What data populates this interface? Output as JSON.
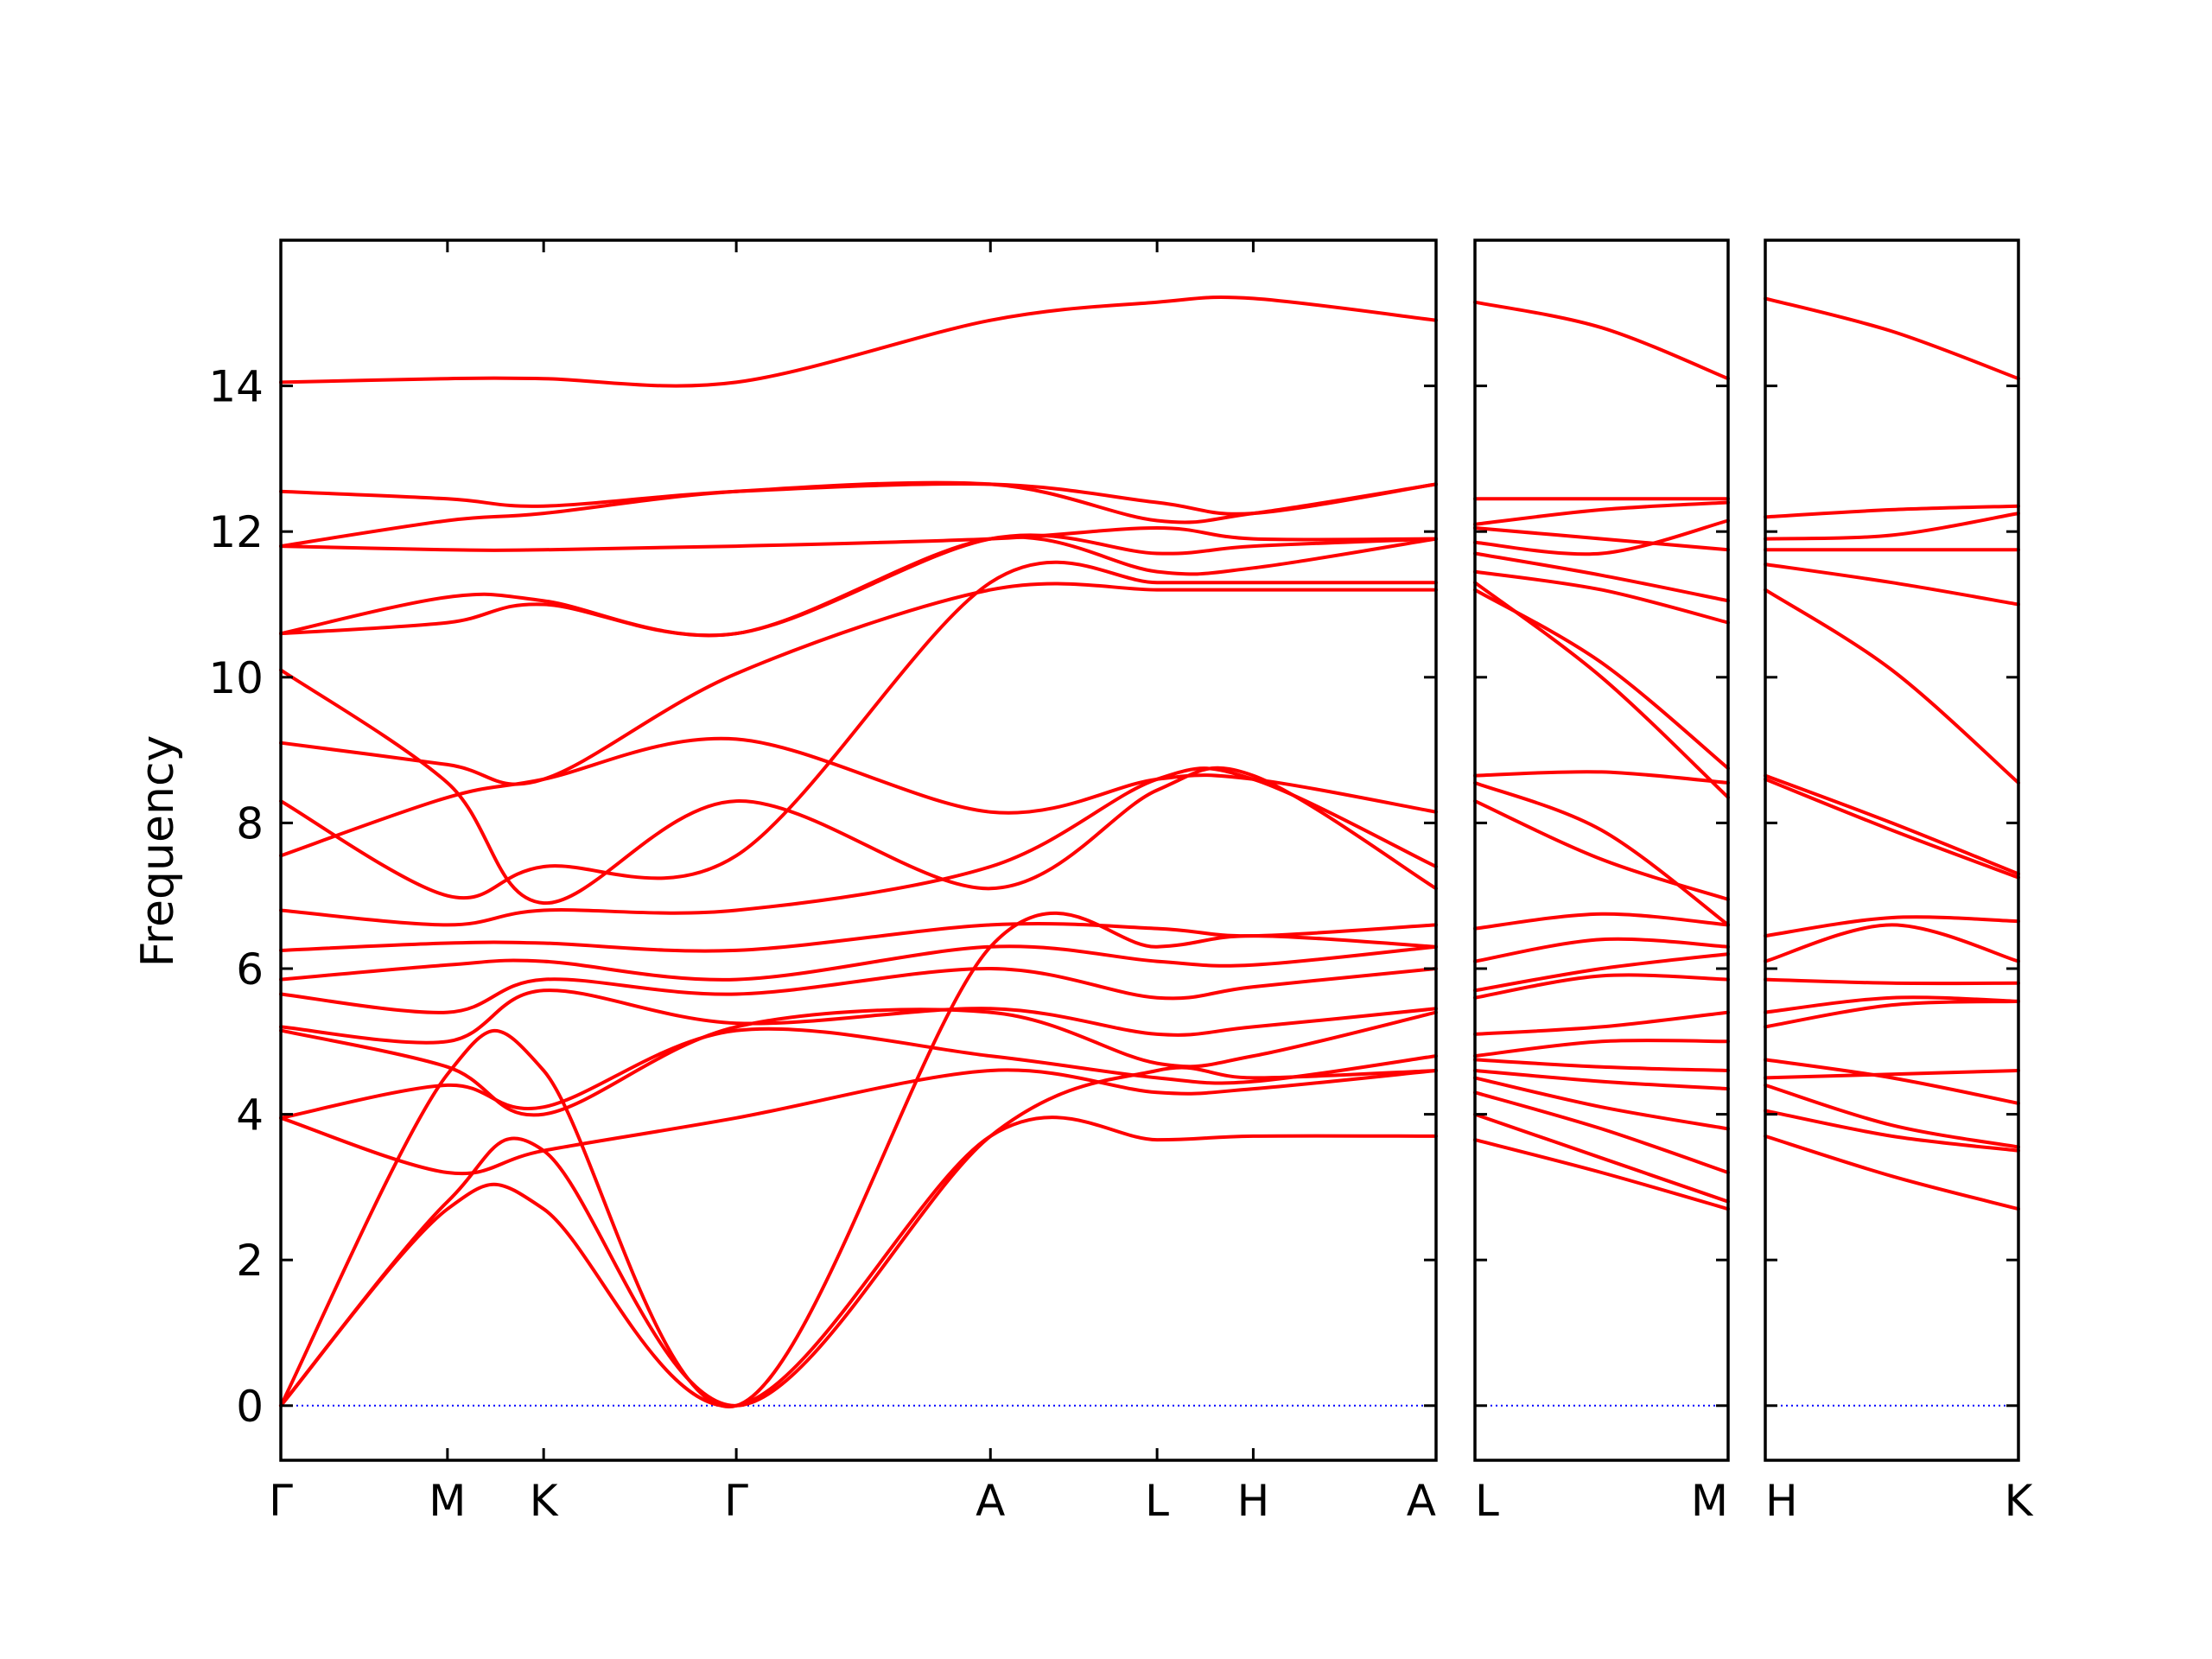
{
  "chart_data": {
    "type": "line",
    "ylabel": "Frequency",
    "xlabel": "",
    "ylim": [
      -0.75,
      16
    ],
    "yticks": [
      0,
      2,
      4,
      6,
      8,
      10,
      12,
      14
    ],
    "grid": false,
    "colors": {
      "band": "#ff0000",
      "zero_line": "#0000ff",
      "frame": "#000000"
    },
    "panels": [
      {
        "path_labels": [
          "Γ",
          "M",
          "K",
          "Γ",
          "A",
          "L",
          "H",
          "A"
        ],
        "path_positions": [
          0,
          0.577,
          0.91,
          1.577,
          2.457,
          3.034,
          3.367,
          4.0
        ],
        "series": [
          {
            "x": [
              0,
              0.577,
              0.91,
              1.577,
              2.457,
              3.034,
              3.367,
              4.0
            ],
            "y": [
              0,
              2.7,
              2.7,
              0,
              3.7,
              3.65,
              3.7,
              3.7
            ]
          },
          {
            "x": [
              0,
              0.577,
              0.91,
              1.577,
              2.457,
              3.034,
              3.367,
              4.0
            ],
            "y": [
              0,
              2.8,
              3.5,
              0,
              3.7,
              4.6,
              4.5,
              4.6
            ]
          },
          {
            "x": [
              0,
              0.577,
              0.91,
              1.577,
              2.457,
              3.034,
              3.367,
              4.0
            ],
            "y": [
              0,
              4.55,
              4.6,
              0,
              6.3,
              6.3,
              6.45,
              6.3
            ]
          },
          {
            "x": [
              0,
              0.577,
              0.91,
              1.577,
              2.457,
              3.034,
              3.367,
              4.0
            ],
            "y": [
              3.95,
              3.2,
              3.5,
              3.95,
              4.6,
              4.3,
              4.35,
              4.6
            ]
          },
          {
            "x": [
              0,
              0.577,
              0.91,
              1.577,
              2.457,
              3.034,
              3.367,
              4.0
            ],
            "y": [
              3.95,
              4.4,
              4.1,
              5.15,
              4.8,
              4.5,
              4.45,
              4.8
            ]
          },
          {
            "x": [
              0,
              0.577,
              0.91,
              1.577,
              2.457,
              3.034,
              3.367,
              4.0
            ],
            "y": [
              5.15,
              4.65,
              4.0,
              5.2,
              5.4,
              4.7,
              4.8,
              5.4
            ]
          },
          {
            "x": [
              0,
              0.577,
              0.91,
              1.577,
              2.457,
              3.034,
              3.367,
              4.0
            ],
            "y": [
              5.2,
              5.0,
              5.7,
              5.25,
              5.45,
              5.1,
              5.2,
              5.45
            ]
          },
          {
            "x": [
              0,
              0.577,
              0.91,
              1.577,
              2.457,
              3.034,
              3.367,
              4.0
            ],
            "y": [
              5.65,
              5.4,
              5.85,
              5.65,
              6.0,
              5.6,
              5.75,
              6.0
            ]
          },
          {
            "x": [
              0,
              0.577,
              0.91,
              1.577,
              2.457,
              3.034,
              3.367,
              4.0
            ],
            "y": [
              5.85,
              6.05,
              6.1,
              5.85,
              6.3,
              6.1,
              6.05,
              6.3
            ]
          },
          {
            "x": [
              0,
              0.577,
              0.91,
              1.577,
              2.457,
              3.034,
              3.367,
              4.0
            ],
            "y": [
              6.25,
              6.35,
              6.35,
              6.25,
              6.6,
              6.55,
              6.45,
              6.6
            ]
          },
          {
            "x": [
              0,
              0.577,
              0.91,
              1.577,
              2.457,
              3.034,
              3.367,
              4.0
            ],
            "y": [
              6.8,
              6.6,
              6.8,
              6.8,
              7.4,
              8.6,
              8.6,
              7.4
            ]
          },
          {
            "x": [
              0,
              0.577,
              0.91,
              1.577,
              2.457,
              3.034,
              3.367,
              4.0
            ],
            "y": [
              7.55,
              8.35,
              8.6,
              9.15,
              8.15,
              8.6,
              8.6,
              8.15
            ]
          },
          {
            "x": [
              0,
              0.577,
              0.91,
              1.577,
              2.457,
              3.034,
              3.367,
              4.0
            ],
            "y": [
              8.3,
              7.0,
              7.4,
              7.55,
              11.3,
              11.3,
              11.3,
              11.3
            ]
          },
          {
            "x": [
              0,
              0.577,
              0.91,
              1.577,
              2.457,
              3.034,
              3.367,
              4.0
            ],
            "y": [
              9.1,
              8.8,
              8.6,
              10.05,
              11.2,
              11.2,
              11.2,
              11.2
            ]
          },
          {
            "x": [
              0,
              0.577,
              0.91,
              1.577,
              2.457,
              3.034,
              3.367,
              4.0
            ],
            "y": [
              10.1,
              8.55,
              6.9,
              8.3,
              7.1,
              8.45,
              8.65,
              7.1
            ]
          },
          {
            "x": [
              0,
              0.577,
              0.91,
              1.577,
              2.457,
              3.034,
              3.367,
              4.0
            ],
            "y": [
              10.6,
              10.75,
              11.0,
              10.6,
              11.9,
              11.45,
              11.5,
              11.9
            ]
          },
          {
            "x": [
              0,
              0.577,
              0.91,
              1.577,
              2.457,
              3.034,
              3.367,
              4.0
            ],
            "y": [
              10.6,
              11.1,
              11.05,
              10.6,
              11.9,
              11.7,
              11.8,
              11.9
            ]
          },
          {
            "x": [
              0,
              0.577,
              0.91,
              1.577,
              2.457,
              3.034,
              3.367,
              4.0
            ],
            "y": [
              11.8,
              11.75,
              11.75,
              11.8,
              11.9,
              12.05,
              11.9,
              11.9
            ]
          },
          {
            "x": [
              0,
              0.577,
              0.91,
              1.577,
              2.457,
              3.034,
              3.367,
              4.0
            ],
            "y": [
              11.8,
              12.15,
              12.25,
              12.55,
              12.65,
              12.15,
              12.25,
              12.65
            ]
          },
          {
            "x": [
              0,
              0.577,
              0.91,
              1.577,
              2.457,
              3.034,
              3.367,
              4.0
            ],
            "y": [
              12.55,
              12.45,
              12.35,
              12.55,
              12.65,
              12.4,
              12.25,
              12.65
            ]
          },
          {
            "x": [
              0,
              0.577,
              0.91,
              1.577,
              2.457,
              3.034,
              3.367,
              4.0
            ],
            "y": [
              14.05,
              14.1,
              14.1,
              14.05,
              14.9,
              15.15,
              15.2,
              14.9
            ]
          }
        ]
      },
      {
        "path_labels": [
          "L",
          "M"
        ],
        "path_positions": [
          0,
          1
        ],
        "series": [
          {
            "x": [
              0,
              0.5,
              1
            ],
            "y": [
              3.65,
              3.2,
              2.7
            ]
          },
          {
            "x": [
              0,
              0.5,
              1
            ],
            "y": [
              4.0,
              3.4,
              2.8
            ]
          },
          {
            "x": [
              0,
              0.5,
              1
            ],
            "y": [
              4.3,
              3.8,
              3.2
            ]
          },
          {
            "x": [
              0,
              0.5,
              1
            ],
            "y": [
              4.5,
              4.1,
              3.8
            ]
          },
          {
            "x": [
              0,
              0.5,
              1
            ],
            "y": [
              4.6,
              4.45,
              4.35
            ]
          },
          {
            "x": [
              0,
              0.5,
              1
            ],
            "y": [
              4.75,
              4.65,
              4.6
            ]
          },
          {
            "x": [
              0,
              0.5,
              1
            ],
            "y": [
              4.8,
              5.0,
              5.0
            ]
          },
          {
            "x": [
              0,
              0.5,
              1
            ],
            "y": [
              5.1,
              5.2,
              5.4
            ]
          },
          {
            "x": [
              0,
              0.5,
              1
            ],
            "y": [
              5.6,
              5.9,
              5.85
            ]
          },
          {
            "x": [
              0,
              0.5,
              1
            ],
            "y": [
              5.7,
              6.0,
              6.2
            ]
          },
          {
            "x": [
              0,
              0.5,
              1
            ],
            "y": [
              6.1,
              6.4,
              6.3
            ]
          },
          {
            "x": [
              0,
              0.5,
              1
            ],
            "y": [
              6.55,
              6.75,
              6.6
            ]
          },
          {
            "x": [
              0,
              0.5,
              1
            ],
            "y": [
              8.3,
              7.5,
              6.95
            ]
          },
          {
            "x": [
              0,
              0.5,
              1
            ],
            "y": [
              8.55,
              7.9,
              6.6
            ]
          },
          {
            "x": [
              0,
              0.5,
              1
            ],
            "y": [
              8.65,
              8.7,
              8.55
            ]
          },
          {
            "x": [
              0,
              0.5,
              1
            ],
            "y": [
              11.2,
              10.2,
              8.75
            ]
          },
          {
            "x": [
              0,
              0.5,
              1
            ],
            "y": [
              11.3,
              10.0,
              8.35
            ]
          },
          {
            "x": [
              0,
              0.5,
              1
            ],
            "y": [
              11.45,
              11.2,
              10.75
            ]
          },
          {
            "x": [
              0,
              0.5,
              1
            ],
            "y": [
              11.7,
              11.4,
              11.05
            ]
          },
          {
            "x": [
              0,
              0.5,
              1
            ],
            "y": [
              11.85,
              11.7,
              12.15
            ]
          },
          {
            "x": [
              0,
              0.5,
              1
            ],
            "y": [
              12.05,
              11.9,
              11.75
            ]
          },
          {
            "x": [
              0,
              0.5,
              1
            ],
            "y": [
              12.1,
              12.3,
              12.4
            ]
          },
          {
            "x": [
              0,
              0.5,
              1
            ],
            "y": [
              12.45,
              12.45,
              12.45
            ]
          },
          {
            "x": [
              0,
              0.5,
              1
            ],
            "y": [
              15.15,
              14.8,
              14.1
            ]
          }
        ]
      },
      {
        "path_labels": [
          "H",
          "K"
        ],
        "path_positions": [
          0,
          1
        ],
        "series": [
          {
            "x": [
              0,
              0.5,
              1
            ],
            "y": [
              3.7,
              3.15,
              2.7
            ]
          },
          {
            "x": [
              0,
              0.5,
              1
            ],
            "y": [
              4.05,
              3.7,
              3.5
            ]
          },
          {
            "x": [
              0,
              0.5,
              1
            ],
            "y": [
              4.4,
              3.85,
              3.55
            ]
          },
          {
            "x": [
              0,
              0.5,
              1
            ],
            "y": [
              4.5,
              4.55,
              4.6
            ]
          },
          {
            "x": [
              0,
              0.5,
              1
            ],
            "y": [
              4.75,
              4.5,
              4.15
            ]
          },
          {
            "x": [
              0,
              0.5,
              1
            ],
            "y": [
              5.2,
              5.5,
              5.55
            ]
          },
          {
            "x": [
              0,
              0.5,
              1
            ],
            "y": [
              5.4,
              5.6,
              5.55
            ]
          },
          {
            "x": [
              0,
              0.5,
              1
            ],
            "y": [
              5.85,
              5.8,
              5.8
            ]
          },
          {
            "x": [
              0,
              0.5,
              1
            ],
            "y": [
              6.1,
              6.6,
              6.1
            ]
          },
          {
            "x": [
              0,
              0.5,
              1
            ],
            "y": [
              6.45,
              6.7,
              6.65
            ]
          },
          {
            "x": [
              0,
              0.5,
              1
            ],
            "y": [
              8.6,
              7.9,
              7.25
            ]
          },
          {
            "x": [
              0,
              0.5,
              1
            ],
            "y": [
              8.65,
              8.0,
              7.3
            ]
          },
          {
            "x": [
              0,
              0.5,
              1
            ],
            "y": [
              11.2,
              10.1,
              8.55
            ]
          },
          {
            "x": [
              0,
              0.5,
              1
            ],
            "y": [
              11.55,
              11.3,
              11.0
            ]
          },
          {
            "x": [
              0,
              0.5,
              1
            ],
            "y": [
              11.75,
              11.75,
              11.75
            ]
          },
          {
            "x": [
              0,
              0.5,
              1
            ],
            "y": [
              11.9,
              11.95,
              12.25
            ]
          },
          {
            "x": [
              0,
              0.5,
              1
            ],
            "y": [
              12.2,
              12.3,
              12.35
            ]
          },
          {
            "x": [
              0,
              0.5,
              1
            ],
            "y": [
              15.2,
              14.75,
              14.1
            ]
          }
        ]
      }
    ]
  }
}
